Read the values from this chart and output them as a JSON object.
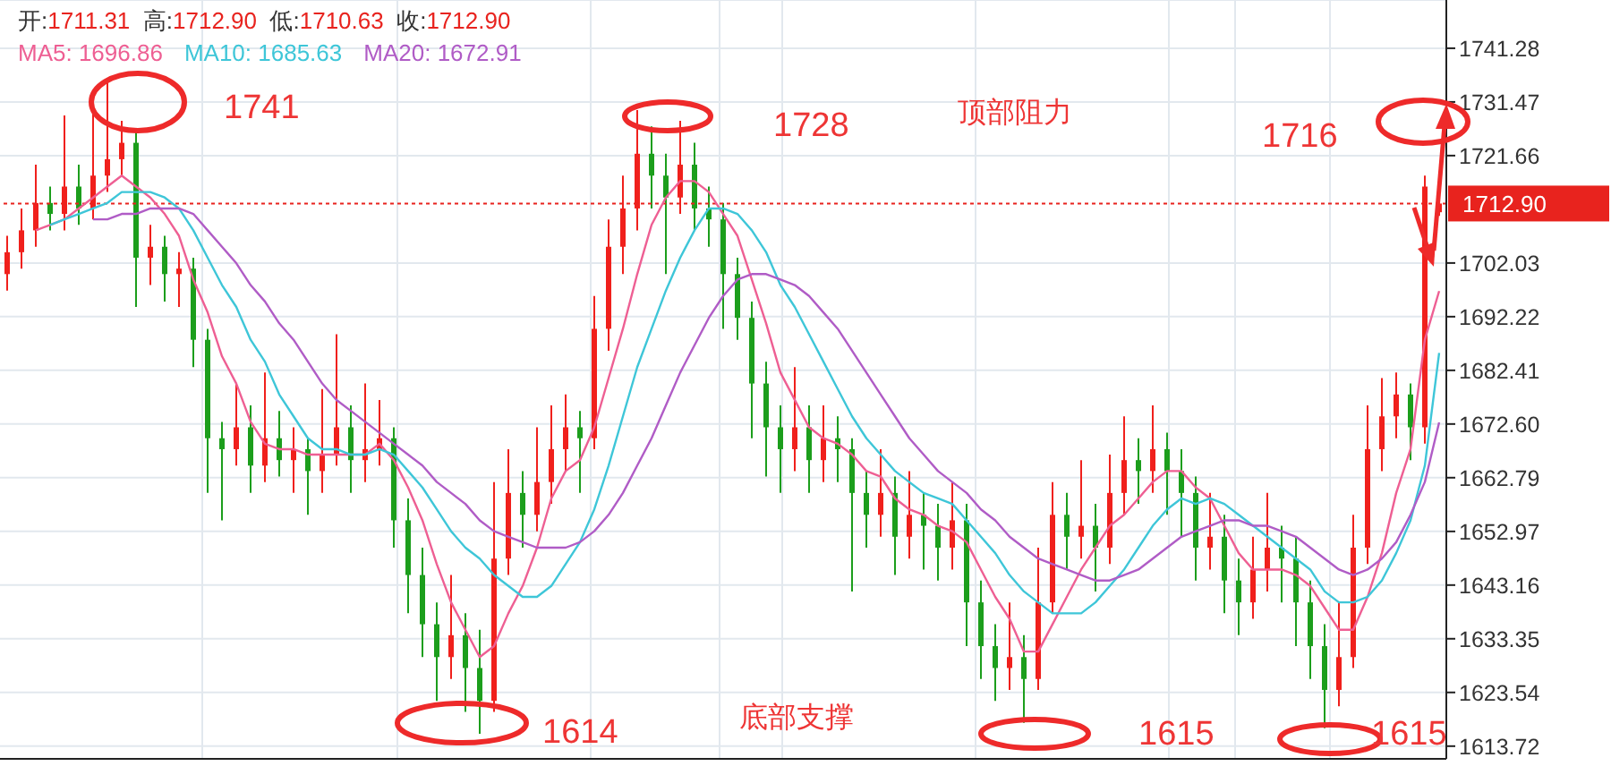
{
  "chart_data": {
    "type": "candlestick",
    "title": "开:1711.31  高:1712.90  低:1710.63  收:1712.90",
    "categories": [
      null,
      null,
      null,
      null,
      null,
      null,
      null,
      null,
      null,
      null,
      null,
      null,
      null,
      null,
      null,
      null,
      null,
      null,
      null,
      null,
      null,
      null,
      null,
      null,
      null,
      null,
      null,
      null,
      null,
      null,
      null,
      null,
      null,
      null,
      null,
      null,
      null,
      null,
      null,
      null,
      null,
      null,
      null,
      null,
      null,
      null,
      null,
      null,
      null,
      null,
      null,
      null,
      null,
      null,
      null,
      null,
      null,
      null,
      null,
      null,
      null,
      null,
      null,
      null,
      null,
      null,
      null,
      null,
      null,
      null,
      null,
      null,
      null,
      null,
      null,
      null,
      null,
      null,
      null,
      null,
      null,
      null,
      null,
      null,
      null,
      null,
      null,
      null,
      null,
      null,
      null,
      null,
      null,
      null,
      null,
      null,
      null,
      null,
      null,
      null,
      null
    ],
    "series": [
      {
        "type": "candlestick",
        "ohlc": [
          [
            1700,
            1707,
            1697,
            1704
          ],
          [
            1704,
            1712,
            1701,
            1708
          ],
          [
            1708,
            1720,
            1705,
            1713
          ],
          [
            1713,
            1716,
            1708,
            1711
          ],
          [
            1711,
            1729,
            1708,
            1716
          ],
          [
            1716,
            1720,
            1709,
            1712
          ],
          [
            1712,
            1730,
            1710,
            1718
          ],
          [
            1718,
            1735,
            1715,
            1721
          ],
          [
            1721,
            1728,
            1718,
            1724
          ],
          [
            1724,
            1726,
            1694,
            1703
          ],
          [
            1703,
            1709,
            1698,
            1705
          ],
          [
            1705,
            1707,
            1695,
            1700
          ],
          [
            1700,
            1704,
            1694,
            1701
          ],
          [
            1701,
            1703,
            1683,
            1688
          ],
          [
            1688,
            1690,
            1660,
            1670
          ],
          [
            1670,
            1673,
            1655,
            1668
          ],
          [
            1668,
            1680,
            1665,
            1672
          ],
          [
            1672,
            1676,
            1660,
            1665
          ],
          [
            1665,
            1682,
            1662,
            1670
          ],
          [
            1670,
            1675,
            1663,
            1666
          ],
          [
            1666,
            1672,
            1660,
            1668
          ],
          [
            1668,
            1670,
            1656,
            1664
          ],
          [
            1664,
            1679,
            1660,
            1667
          ],
          [
            1667,
            1689,
            1665,
            1672
          ],
          [
            1672,
            1676,
            1660,
            1666
          ],
          [
            1666,
            1680,
            1662,
            1668
          ],
          [
            1668,
            1677,
            1665,
            1670
          ],
          [
            1670,
            1672,
            1650,
            1655
          ],
          [
            1655,
            1659,
            1638,
            1645
          ],
          [
            1645,
            1650,
            1630,
            1636
          ],
          [
            1636,
            1640,
            1622,
            1630
          ],
          [
            1630,
            1645,
            1626,
            1634
          ],
          [
            1634,
            1638,
            1620,
            1628
          ],
          [
            1628,
            1635,
            1616,
            1622
          ],
          [
            1622,
            1662,
            1620,
            1648
          ],
          [
            1648,
            1668,
            1645,
            1660
          ],
          [
            1660,
            1664,
            1650,
            1656
          ],
          [
            1656,
            1672,
            1653,
            1662
          ],
          [
            1662,
            1676,
            1658,
            1668
          ],
          [
            1668,
            1678,
            1664,
            1672
          ],
          [
            1672,
            1675,
            1660,
            1670
          ],
          [
            1670,
            1696,
            1668,
            1690
          ],
          [
            1690,
            1710,
            1686,
            1705
          ],
          [
            1705,
            1718,
            1700,
            1712
          ],
          [
            1712,
            1730,
            1708,
            1722
          ],
          [
            1722,
            1727,
            1712,
            1718
          ],
          [
            1718,
            1722,
            1700,
            1714
          ],
          [
            1714,
            1728,
            1711,
            1720
          ],
          [
            1720,
            1724,
            1708,
            1712
          ],
          [
            1712,
            1716,
            1705,
            1710
          ],
          [
            1710,
            1713,
            1690,
            1700
          ],
          [
            1700,
            1703,
            1688,
            1692
          ],
          [
            1692,
            1695,
            1670,
            1680
          ],
          [
            1680,
            1684,
            1663,
            1672
          ],
          [
            1672,
            1676,
            1660,
            1668
          ],
          [
            1668,
            1683,
            1664,
            1672
          ],
          [
            1672,
            1676,
            1660,
            1666
          ],
          [
            1666,
            1676,
            1662,
            1670
          ],
          [
            1670,
            1674,
            1662,
            1668
          ],
          [
            1668,
            1670,
            1642,
            1660
          ],
          [
            1660,
            1664,
            1650,
            1656
          ],
          [
            1656,
            1668,
            1652,
            1660
          ],
          [
            1660,
            1663,
            1645,
            1652
          ],
          [
            1652,
            1664,
            1648,
            1656
          ],
          [
            1656,
            1660,
            1646,
            1654
          ],
          [
            1654,
            1658,
            1644,
            1650
          ],
          [
            1650,
            1662,
            1646,
            1655
          ],
          [
            1655,
            1658,
            1632,
            1640
          ],
          [
            1640,
            1644,
            1626,
            1632
          ],
          [
            1632,
            1636,
            1622,
            1628
          ],
          [
            1628,
            1640,
            1624,
            1630
          ],
          [
            1630,
            1634,
            1618,
            1626
          ],
          [
            1626,
            1650,
            1624,
            1640
          ],
          [
            1640,
            1662,
            1638,
            1656
          ],
          [
            1656,
            1660,
            1646,
            1652
          ],
          [
            1652,
            1666,
            1648,
            1654
          ],
          [
            1654,
            1658,
            1642,
            1650
          ],
          [
            1650,
            1667,
            1647,
            1660
          ],
          [
            1660,
            1674,
            1656,
            1666
          ],
          [
            1666,
            1670,
            1658,
            1664
          ],
          [
            1664,
            1676,
            1660,
            1668
          ],
          [
            1668,
            1671,
            1656,
            1664
          ],
          [
            1664,
            1668,
            1652,
            1660
          ],
          [
            1660,
            1663,
            1644,
            1650
          ],
          [
            1650,
            1660,
            1646,
            1652
          ],
          [
            1652,
            1656,
            1638,
            1644
          ],
          [
            1644,
            1648,
            1634,
            1640
          ],
          [
            1640,
            1652,
            1637,
            1646
          ],
          [
            1646,
            1660,
            1642,
            1650
          ],
          [
            1650,
            1654,
            1640,
            1648
          ],
          [
            1648,
            1652,
            1632,
            1640
          ],
          [
            1640,
            1644,
            1626,
            1632
          ],
          [
            1632,
            1636,
            1617,
            1624
          ],
          [
            1624,
            1640,
            1621,
            1630
          ],
          [
            1630,
            1656,
            1628,
            1650
          ],
          [
            1650,
            1676,
            1647,
            1668
          ],
          [
            1668,
            1681,
            1664,
            1674
          ],
          [
            1674,
            1682,
            1670,
            1678
          ],
          [
            1678,
            1680,
            1666,
            1672
          ],
          [
            1672,
            1718,
            1669,
            1716
          ],
          [
            1711.31,
            1712.9,
            1710.63,
            1712.9
          ]
        ],
        "colors": [
          "#f0201c",
          "#f0201c",
          "#f0201c",
          "#1c9e1c",
          "#f0201c",
          "#1c9e1c",
          "#f0201c",
          "#f0201c",
          "#f0201c",
          "#1c9e1c",
          "#f0201c",
          "#1c9e1c",
          "#f0201c",
          "#1c9e1c",
          "#1c9e1c",
          "#1c9e1c",
          "#f0201c",
          "#1c9e1c",
          "#f0201c",
          "#1c9e1c",
          "#f0201c",
          "#1c9e1c",
          "#f0201c",
          "#f0201c",
          "#1c9e1c",
          "#f0201c",
          "#f0201c",
          "#1c9e1c",
          "#1c9e1c",
          "#1c9e1c",
          "#1c9e1c",
          "#f0201c",
          "#1c9e1c",
          "#1c9e1c",
          "#f0201c",
          "#f0201c",
          "#1c9e1c",
          "#f0201c",
          "#f0201c",
          "#f0201c",
          "#1c9e1c",
          "#f0201c",
          "#f0201c",
          "#f0201c",
          "#f0201c",
          "#1c9e1c",
          "#1c9e1c",
          "#f0201c",
          "#1c9e1c",
          "#1c9e1c",
          "#1c9e1c",
          "#1c9e1c",
          "#1c9e1c",
          "#1c9e1c",
          "#1c9e1c",
          "#f0201c",
          "#1c9e1c",
          "#f0201c",
          "#1c9e1c",
          "#1c9e1c",
          "#1c9e1c",
          "#f0201c",
          "#1c9e1c",
          "#f0201c",
          "#1c9e1c",
          "#1c9e1c",
          "#f0201c",
          "#1c9e1c",
          "#1c9e1c",
          "#1c9e1c",
          "#f0201c",
          "#1c9e1c",
          "#f0201c",
          "#f0201c",
          "#1c9e1c",
          "#f0201c",
          "#1c9e1c",
          "#f0201c",
          "#f0201c",
          "#1c9e1c",
          "#f0201c",
          "#1c9e1c",
          "#1c9e1c",
          "#1c9e1c",
          "#f0201c",
          "#1c9e1c",
          "#1c9e1c",
          "#f0201c",
          "#f0201c",
          "#1c9e1c",
          "#1c9e1c",
          "#1c9e1c",
          "#1c9e1c",
          "#f0201c",
          "#f0201c",
          "#f0201c",
          "#f0201c",
          "#f0201c",
          "#1c9e1c",
          "#f0201c",
          "#f0201c"
        ]
      },
      {
        "type": "line",
        "name": "MA5: 1696.86",
        "color": "#ee5f93",
        "values": [
          null,
          null,
          1708,
          1709,
          1710,
          1712,
          1714,
          1716,
          1718,
          1716,
          1714,
          1711,
          1707,
          1699,
          1693,
          1685,
          1680,
          1673,
          1669,
          1668,
          1668,
          1667,
          1667,
          1667,
          1667,
          1667,
          1669,
          1666,
          1661,
          1655,
          1647,
          1640,
          1635,
          1630,
          1632,
          1638,
          1643,
          1650,
          1659,
          1664,
          1666,
          1672,
          1681,
          1690,
          1700,
          1709,
          1714,
          1717,
          1717,
          1715,
          1711,
          1707,
          1699,
          1691,
          1682,
          1677,
          1672,
          1670,
          1669,
          1667,
          1664,
          1663,
          1659,
          1657,
          1656,
          1654,
          1653,
          1651,
          1646,
          1641,
          1637,
          1631,
          1631,
          1636,
          1641,
          1646,
          1650,
          1654,
          1656,
          1659,
          1662,
          1664,
          1664,
          1661,
          1659,
          1654,
          1649,
          1646,
          1646,
          1646,
          1645,
          1643,
          1639,
          1635,
          1635,
          1641,
          1649,
          1660,
          1668,
          1688,
          1696.9
        ]
      },
      {
        "type": "line",
        "name": "MA10: 1685.63",
        "color": "#3ec6d8",
        "values": [
          null,
          null,
          null,
          1709,
          1710,
          1711,
          1712,
          1713,
          1715,
          1715,
          1715,
          1714,
          1712,
          1708,
          1703,
          1698,
          1694,
          1688,
          1684,
          1678,
          1674,
          1670,
          1668,
          1668,
          1667,
          1667,
          1668,
          1667,
          1664,
          1661,
          1657,
          1653,
          1650,
          1648,
          1645,
          1643,
          1641,
          1641,
          1643,
          1647,
          1651,
          1657,
          1665,
          1674,
          1683,
          1690,
          1697,
          1703,
          1708,
          1712,
          1712,
          1711,
          1708,
          1704,
          1698,
          1694,
          1689,
          1684,
          1679,
          1674,
          1670,
          1667,
          1664,
          1662,
          1660,
          1659,
          1658,
          1655,
          1652,
          1649,
          1645,
          1642,
          1640,
          1638,
          1638,
          1638,
          1640,
          1643,
          1646,
          1650,
          1654,
          1657,
          1659,
          1658,
          1659,
          1658,
          1656,
          1654,
          1652,
          1650,
          1648,
          1646,
          1642,
          1640,
          1640,
          1641,
          1644,
          1649,
          1655,
          1665,
          1685.6
        ]
      },
      {
        "type": "line",
        "name": "MA20: 1672.91",
        "color": "#b05cc6",
        "values": [
          null,
          null,
          null,
          null,
          null,
          null,
          1710,
          1710,
          1711,
          1711,
          1712,
          1712,
          1712,
          1711,
          1708,
          1705,
          1702,
          1698,
          1695,
          1691,
          1688,
          1684,
          1680,
          1677,
          1675,
          1673,
          1671,
          1669,
          1667,
          1665,
          1662,
          1660,
          1658,
          1655,
          1653,
          1652,
          1651,
          1650,
          1650,
          1650,
          1651,
          1653,
          1656,
          1660,
          1665,
          1670,
          1676,
          1682,
          1687,
          1692,
          1696,
          1699,
          1700,
          1700,
          1699,
          1698,
          1696,
          1693,
          1690,
          1686,
          1682,
          1678,
          1674,
          1670,
          1667,
          1664,
          1662,
          1660,
          1657,
          1655,
          1652,
          1650,
          1648,
          1647,
          1646,
          1645,
          1644,
          1644,
          1645,
          1646,
          1648,
          1650,
          1652,
          1653,
          1654,
          1655,
          1655,
          1654,
          1654,
          1653,
          1652,
          1650,
          1648,
          1646,
          1645,
          1646,
          1648,
          1651,
          1656,
          1662,
          1672.9
        ]
      }
    ],
    "ylim": [
      1611.4,
      1750.1
    ],
    "yticks": [
      1613.72,
      1623.54,
      1633.35,
      1643.16,
      1652.97,
      {
        "value": 1662.79,
        "label": "1662.79"
      },
      {
        "value": 1672.6,
        "label": "1672.60"
      },
      1682.41,
      1692.22,
      1702.03,
      1721.66,
      1731.47,
      1741.28
    ],
    "ref_lines": [
      {
        "axis": "y",
        "value": 1712.9,
        "label": "1712.90",
        "color": "#e8231e",
        "line_style": "dotted"
      }
    ],
    "annotations": [
      "1741",
      "1728",
      "顶部阻力",
      "1716",
      "1614",
      "底部支撑",
      "1615",
      "1615"
    ],
    "grid": true,
    "legend": "top left",
    "tick_labels": "y"
  }
}
